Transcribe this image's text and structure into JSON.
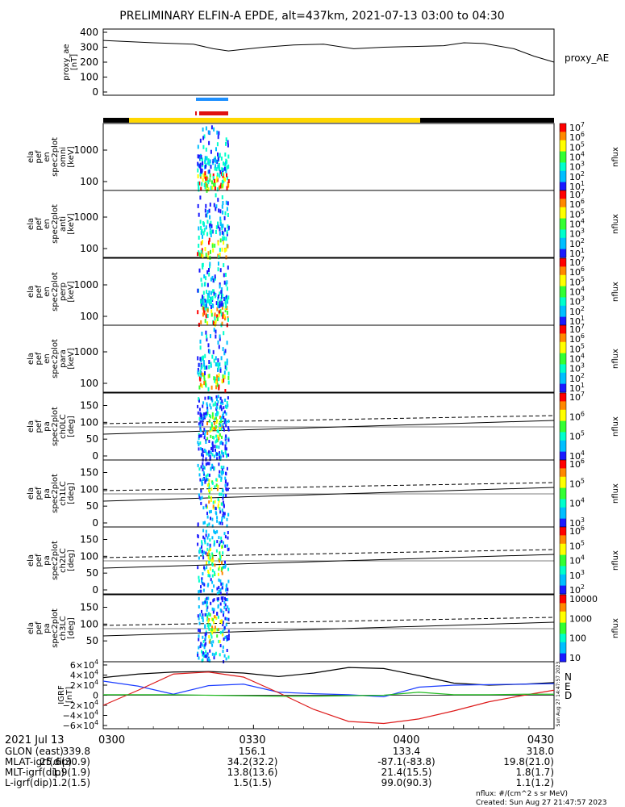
{
  "title": "PRELIMINARY ELFIN-A EPDE, alt=437km, 2021-07-13 03:00 to 04:30",
  "colors": {
    "bar_yellow": "#ffd700",
    "bar_black": "#000000",
    "marker_blue": "#1e90ff",
    "marker_red": "#e01010",
    "grf_n": "#000000",
    "grf_e": "#1a3cff",
    "grf_d": "#dd1a1a",
    "grf_extra": "#22bb22"
  },
  "chart_data": [
    {
      "type": "line",
      "panel": "proxy_ae",
      "ylabel": "proxy_ae [nT]",
      "legend": "proxy_AE",
      "ylim": [
        0,
        400
      ],
      "yticks": [
        "400",
        "300",
        "200",
        "100",
        "0"
      ],
      "x_minutes": [
        0,
        10,
        18,
        22,
        25,
        32,
        38,
        44,
        50,
        56,
        62,
        68,
        72,
        76,
        82,
        86,
        90
      ],
      "values": [
        345,
        330,
        320,
        290,
        275,
        300,
        315,
        320,
        290,
        300,
        305,
        310,
        330,
        325,
        290,
        240,
        200
      ]
    },
    {
      "type": "heatmap",
      "panel": "omni",
      "ylabel": [
        "ela",
        "pef",
        "en",
        "spec2plot",
        "omni",
        "[keV]"
      ],
      "yticks": [
        "1000",
        "100"
      ],
      "colorbar_ticks": [
        "10^7",
        "10^6",
        "10^5",
        "10^4",
        "10^3",
        "10^2",
        "10^1"
      ],
      "colorbar_label": "nflux"
    },
    {
      "type": "heatmap",
      "panel": "anti",
      "ylabel": [
        "ela",
        "pef",
        "en",
        "spec2plot",
        "anti",
        "[keV]"
      ],
      "yticks": [
        "1000",
        "100"
      ],
      "colorbar_ticks": [
        "10^7",
        "10^6",
        "10^5",
        "10^4",
        "10^3",
        "10^2",
        "10^1"
      ],
      "colorbar_label": "nflux"
    },
    {
      "type": "heatmap",
      "panel": "perp",
      "ylabel": [
        "ela",
        "pef",
        "en",
        "spec2plot",
        "perp",
        "[keV]"
      ],
      "yticks": [
        "1000",
        "100"
      ],
      "colorbar_ticks": [
        "10^7",
        "10^6",
        "10^5",
        "10^4",
        "10^3",
        "10^2",
        "10^1"
      ],
      "colorbar_label": "nflux"
    },
    {
      "type": "heatmap",
      "panel": "para",
      "ylabel": [
        "ela",
        "pef",
        "en",
        "spec2plot",
        "para",
        "[keV]"
      ],
      "yticks": [
        "1000",
        "100"
      ],
      "colorbar_ticks": [
        "10^7",
        "10^6",
        "10^5",
        "10^4",
        "10^3",
        "10^2",
        "10^1"
      ],
      "colorbar_label": "nflux"
    },
    {
      "type": "heatmap",
      "panel": "ch0LC",
      "ylabel": [
        "ela",
        "pef",
        "pa",
        "spec2plot",
        "ch0LC",
        "[deg]"
      ],
      "yticks": [
        "150",
        "100",
        "50",
        "0"
      ],
      "colorbar_ticks": [
        "10^7",
        "10^6",
        "10^5",
        "10^4"
      ],
      "colorbar_label": "nflux"
    },
    {
      "type": "heatmap",
      "panel": "ch1LC",
      "ylabel": [
        "ela",
        "pef",
        "pa",
        "spec2plot",
        "ch1LC",
        "[deg]"
      ],
      "yticks": [
        "150",
        "100",
        "50",
        "0"
      ],
      "colorbar_ticks": [
        "10^6",
        "10^5",
        "10^4",
        "10^3"
      ],
      "colorbar_label": "nflux"
    },
    {
      "type": "heatmap",
      "panel": "ch2LC",
      "ylabel": [
        "ela",
        "pef",
        "pa",
        "spec2plot",
        "ch2LC",
        "[deg]"
      ],
      "yticks": [
        "150",
        "100",
        "50",
        "0"
      ],
      "colorbar_ticks": [
        "10^6",
        "10^5",
        "10^4",
        "10^3",
        "10^2"
      ],
      "colorbar_label": "nflux"
    },
    {
      "type": "heatmap",
      "panel": "ch3LC",
      "ylabel": [
        "ela",
        "pef",
        "pa",
        "spec2plot",
        "ch3LC",
        "[deg]"
      ],
      "yticks": [
        "150",
        "100",
        "50"
      ],
      "colorbar_ticks": [
        "10000",
        "1000",
        "100",
        "10"
      ],
      "colorbar_label": "nflux"
    },
    {
      "type": "line",
      "panel": "IGRF",
      "ylabel": "IGRF [nT]",
      "ylim": [
        -60000,
        60000
      ],
      "yticks": [
        "6×10^4",
        "4×10^4",
        "2×10^4",
        "0",
        "−2×10^4",
        "−4×10^4",
        "−6×10^4"
      ],
      "x_minutes": [
        0,
        7,
        14,
        21,
        28,
        35,
        42,
        49,
        56,
        63,
        70,
        77,
        84,
        90
      ],
      "series": [
        {
          "name": "N",
          "values": [
            35000,
            42000,
            46000,
            47000,
            44000,
            37000,
            44000,
            55000,
            53000,
            39000,
            24000,
            20000,
            22000,
            25000
          ]
        },
        {
          "name": "E",
          "values": [
            28000,
            18000,
            2000,
            19000,
            22000,
            6000,
            3000,
            1000,
            -3000,
            16000,
            20000,
            21000,
            22000,
            23000
          ]
        },
        {
          "name": "D",
          "values": [
            -20000,
            10000,
            42000,
            46000,
            36000,
            5000,
            -28000,
            -52000,
            -56000,
            -47000,
            -31000,
            -13000,
            0,
            10000
          ]
        },
        {
          "name": "",
          "values": [
            1000,
            1000,
            1000,
            0,
            -1000,
            -2000,
            -2000,
            -1000,
            0,
            6000,
            1000,
            1000,
            2000,
            2000
          ]
        }
      ]
    }
  ],
  "time_axis": {
    "date_label": "2021 Jul 13",
    "ticks": [
      "0300",
      "0330",
      "0400",
      "0430"
    ]
  },
  "ephemeris": [
    {
      "label": "GLON (east)",
      "values": [
        "339.8",
        "156.1",
        "133.4",
        "318.0"
      ]
    },
    {
      "label": "MLAT-igrf(dip)",
      "values": [
        "25.6(30.9)",
        "34.2(32.2)",
        "-87.1(-83.8)",
        "19.8(21.0)"
      ]
    },
    {
      "label": "MLT-igrf(dip)",
      "values": [
        "1.9(1.9)",
        "13.8(13.6)",
        "21.4(15.5)",
        "1.8(1.7)"
      ]
    },
    {
      "label": "L-igrf(dip)",
      "values": [
        "1.2(1.5)",
        "1.5(1.5)",
        "99.0(90.3)",
        "1.1(1.2)"
      ]
    }
  ],
  "footer": {
    "units": "nflux: #/(cm^2 s sr MeV)",
    "created": "Created: Sun Aug 27 21:47:57 2023"
  },
  "side_note": "Sun Aug 27 14:47:57 2023"
}
